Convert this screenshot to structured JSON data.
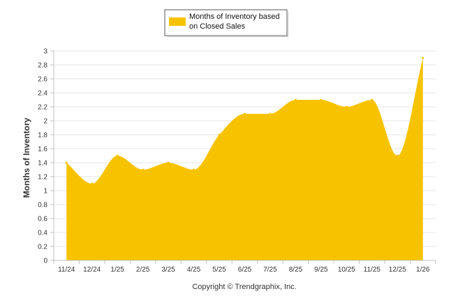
{
  "chart_data": {
    "type": "area",
    "categories": [
      "11/24",
      "12/24",
      "1/25",
      "2/25",
      "3/25",
      "4/25",
      "5/25",
      "6/25",
      "7/25",
      "8/25",
      "9/25",
      "10/25",
      "11/25",
      "12/25",
      "1/26"
    ],
    "series": [
      {
        "name": "Months of Inventory based on Closed Sales",
        "values": [
          1.4,
          1.1,
          1.5,
          1.3,
          1.4,
          1.3,
          1.8,
          2.1,
          2.1,
          2.3,
          2.3,
          2.2,
          2.3,
          1.5,
          2.9
        ],
        "color": "#F7C300"
      }
    ],
    "ylabel": "Months of Inventory",
    "ylim": [
      0,
      3
    ],
    "yticks": [
      "0",
      "0.2",
      "0.4",
      "0.6",
      "0.8",
      "1",
      "1.2",
      "1.4",
      "1.6",
      "1.8",
      "2",
      "2.2",
      "2.4",
      "2.6",
      "2.8",
      "3"
    ],
    "grid": true,
    "legend_position": "top-center"
  },
  "legend": {
    "line1": "Months of Inventory based",
    "line2": "on Closed Sales"
  },
  "footer": {
    "copyright": "Copyright © Trendgraphix, Inc."
  },
  "colors": {
    "area": "#F7C300",
    "grid": "#e6e6e6",
    "axis": "#c0c0c0"
  }
}
